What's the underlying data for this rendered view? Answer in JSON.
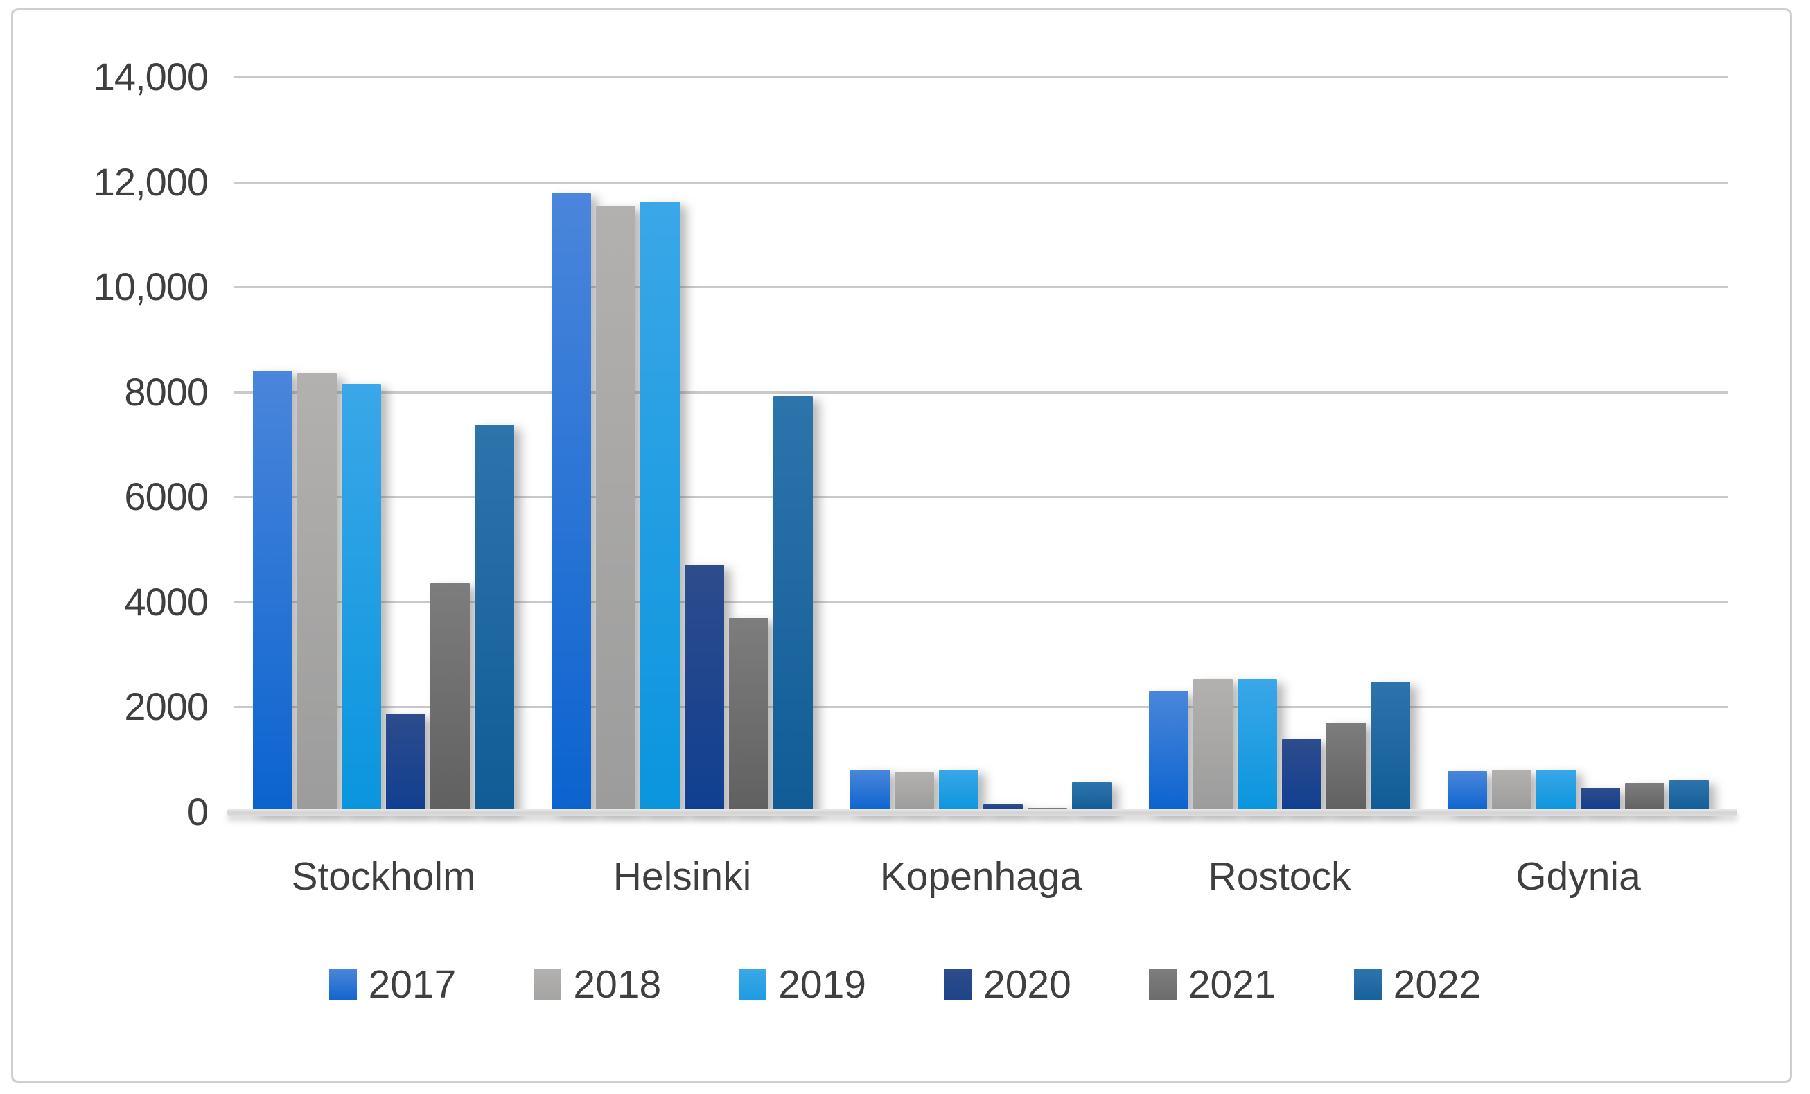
{
  "chart_data": {
    "type": "bar",
    "title": "",
    "xlabel": "",
    "ylabel": "",
    "grid": true,
    "legend_position": "bottom",
    "categories": [
      "Stockholm",
      "Helsinki",
      "Kopenhaga",
      "Rostock",
      "Gdynia"
    ],
    "series": [
      {
        "name": "2017",
        "legend_color": "#1165cf",
        "color_top": "#4a86db",
        "color_bottom": "#0b63cf",
        "values": [
          8400,
          11790,
          800,
          2300,
          780
        ]
      },
      {
        "name": "2018",
        "legend_color": "#a6a4a2",
        "color_top": "#b3b1af",
        "color_bottom": "#9c9c9c",
        "values": [
          8350,
          11550,
          760,
          2530,
          790
        ]
      },
      {
        "name": "2019",
        "legend_color": "#1d9ce2",
        "color_top": "#3aa7e8",
        "color_bottom": "#0a95dd",
        "values": [
          8150,
          11620,
          800,
          2540,
          800
        ]
      },
      {
        "name": "2020",
        "legend_color": "#1d4489",
        "color_top": "#2d4c8c",
        "color_bottom": "#103f90",
        "values": [
          1870,
          4710,
          150,
          1380,
          460
        ]
      },
      {
        "name": "2021",
        "legend_color": "#6c6c6c",
        "color_top": "#7d7d7d",
        "color_bottom": "#606060",
        "values": [
          4360,
          3700,
          80,
          1700,
          550
        ]
      },
      {
        "name": "2022",
        "legend_color": "#17619c",
        "color_top": "#2d74ab",
        "color_bottom": "#115c96",
        "values": [
          7370,
          7920,
          570,
          2480,
          610
        ]
      }
    ],
    "y_axis": {
      "min": 0,
      "max": 14000,
      "step": 2000,
      "tick_labels": [
        "0",
        "2000",
        "4000",
        "6000",
        "8000",
        "10,000",
        "12,000",
        "14,000"
      ]
    }
  }
}
